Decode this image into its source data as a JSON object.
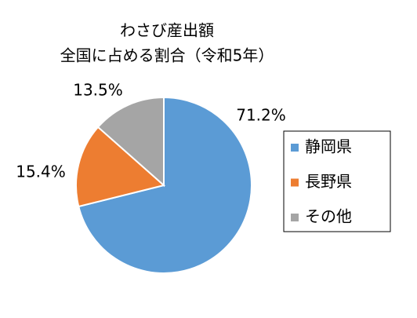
{
  "chart_data": {
    "type": "pie",
    "title": "わさび産出額",
    "subtitle": "全国に占める割合（令和5年）",
    "categories": [
      "静岡県",
      "長野県",
      "その他"
    ],
    "values": [
      71.2,
      15.4,
      13.5
    ],
    "value_labels": [
      "71.2%",
      "15.4%",
      "13.5%"
    ],
    "colors": [
      "#5b9bd5",
      "#ed7d31",
      "#a5a5a5"
    ],
    "legend": "right"
  }
}
